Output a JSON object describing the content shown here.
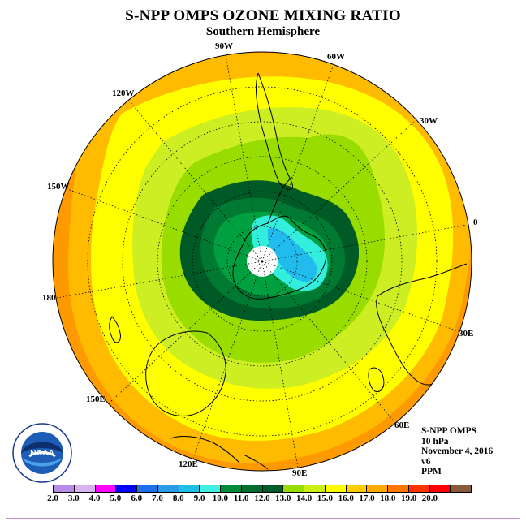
{
  "title": "S-NPP OMPS OZONE MIXING RATIO",
  "subtitle": "Southern Hemisphere",
  "info": {
    "instrument": "S-NPP OMPS",
    "level": "10 hPa",
    "date": "November 4, 2016",
    "version": "v6",
    "units": "PPM"
  },
  "logo_text": "NOAA",
  "logo_ring_text": "NATIONAL OCEANIC AND ATMOSPHERIC ADMINISTRATION · U.S. DEPARTMENT OF COMMERCE",
  "longitude_labels": [
    "90W",
    "60W",
    "120W",
    "30W",
    "150W",
    "0",
    "180",
    "30E",
    "150E",
    "60E",
    "120E",
    "90E"
  ],
  "colorbar": {
    "tick_labels": [
      "2.0",
      "3.0",
      "4.0",
      "5.0",
      "6.0",
      "7.0",
      "8.0",
      "9.0",
      "10.0",
      "11.0",
      "12.0",
      "13.0",
      "14.0",
      "15.0",
      "16.0",
      "17.0",
      "18.0",
      "19.0",
      "20.0"
    ],
    "colors": [
      "#b88be8",
      "#d9b3f0",
      "#ff00ff",
      "#0000ff",
      "#1e6fe8",
      "#2a9be6",
      "#1fbfe6",
      "#3ff0e0",
      "#008a3c",
      "#006d2c",
      "#005c28",
      "#99dd00",
      "#ccee11",
      "#ffff00",
      "#ffcc00",
      "#ffaa00",
      "#ff7700",
      "#ff3300",
      "#ff0000",
      "#8b5a3c"
    ]
  },
  "map": {
    "projection": "south-polar-stereographic",
    "field_levels_ppm": [
      10.0,
      11.0,
      12.0,
      13.0,
      14.0,
      15.0,
      16.0,
      17.0
    ],
    "field_colors": {
      "c17": "#ff9900",
      "c16": "#ffb400",
      "c15": "#ffcc00",
      "c14": "#ffff00",
      "c13": "#ccee22",
      "c12": "#99dd00",
      "c11": "#007a33",
      "c10": "#005a26",
      "c9": "#00a040",
      "c8": "#33eedd",
      "c7": "#22bbee",
      "pole": "#ffffff"
    }
  }
}
